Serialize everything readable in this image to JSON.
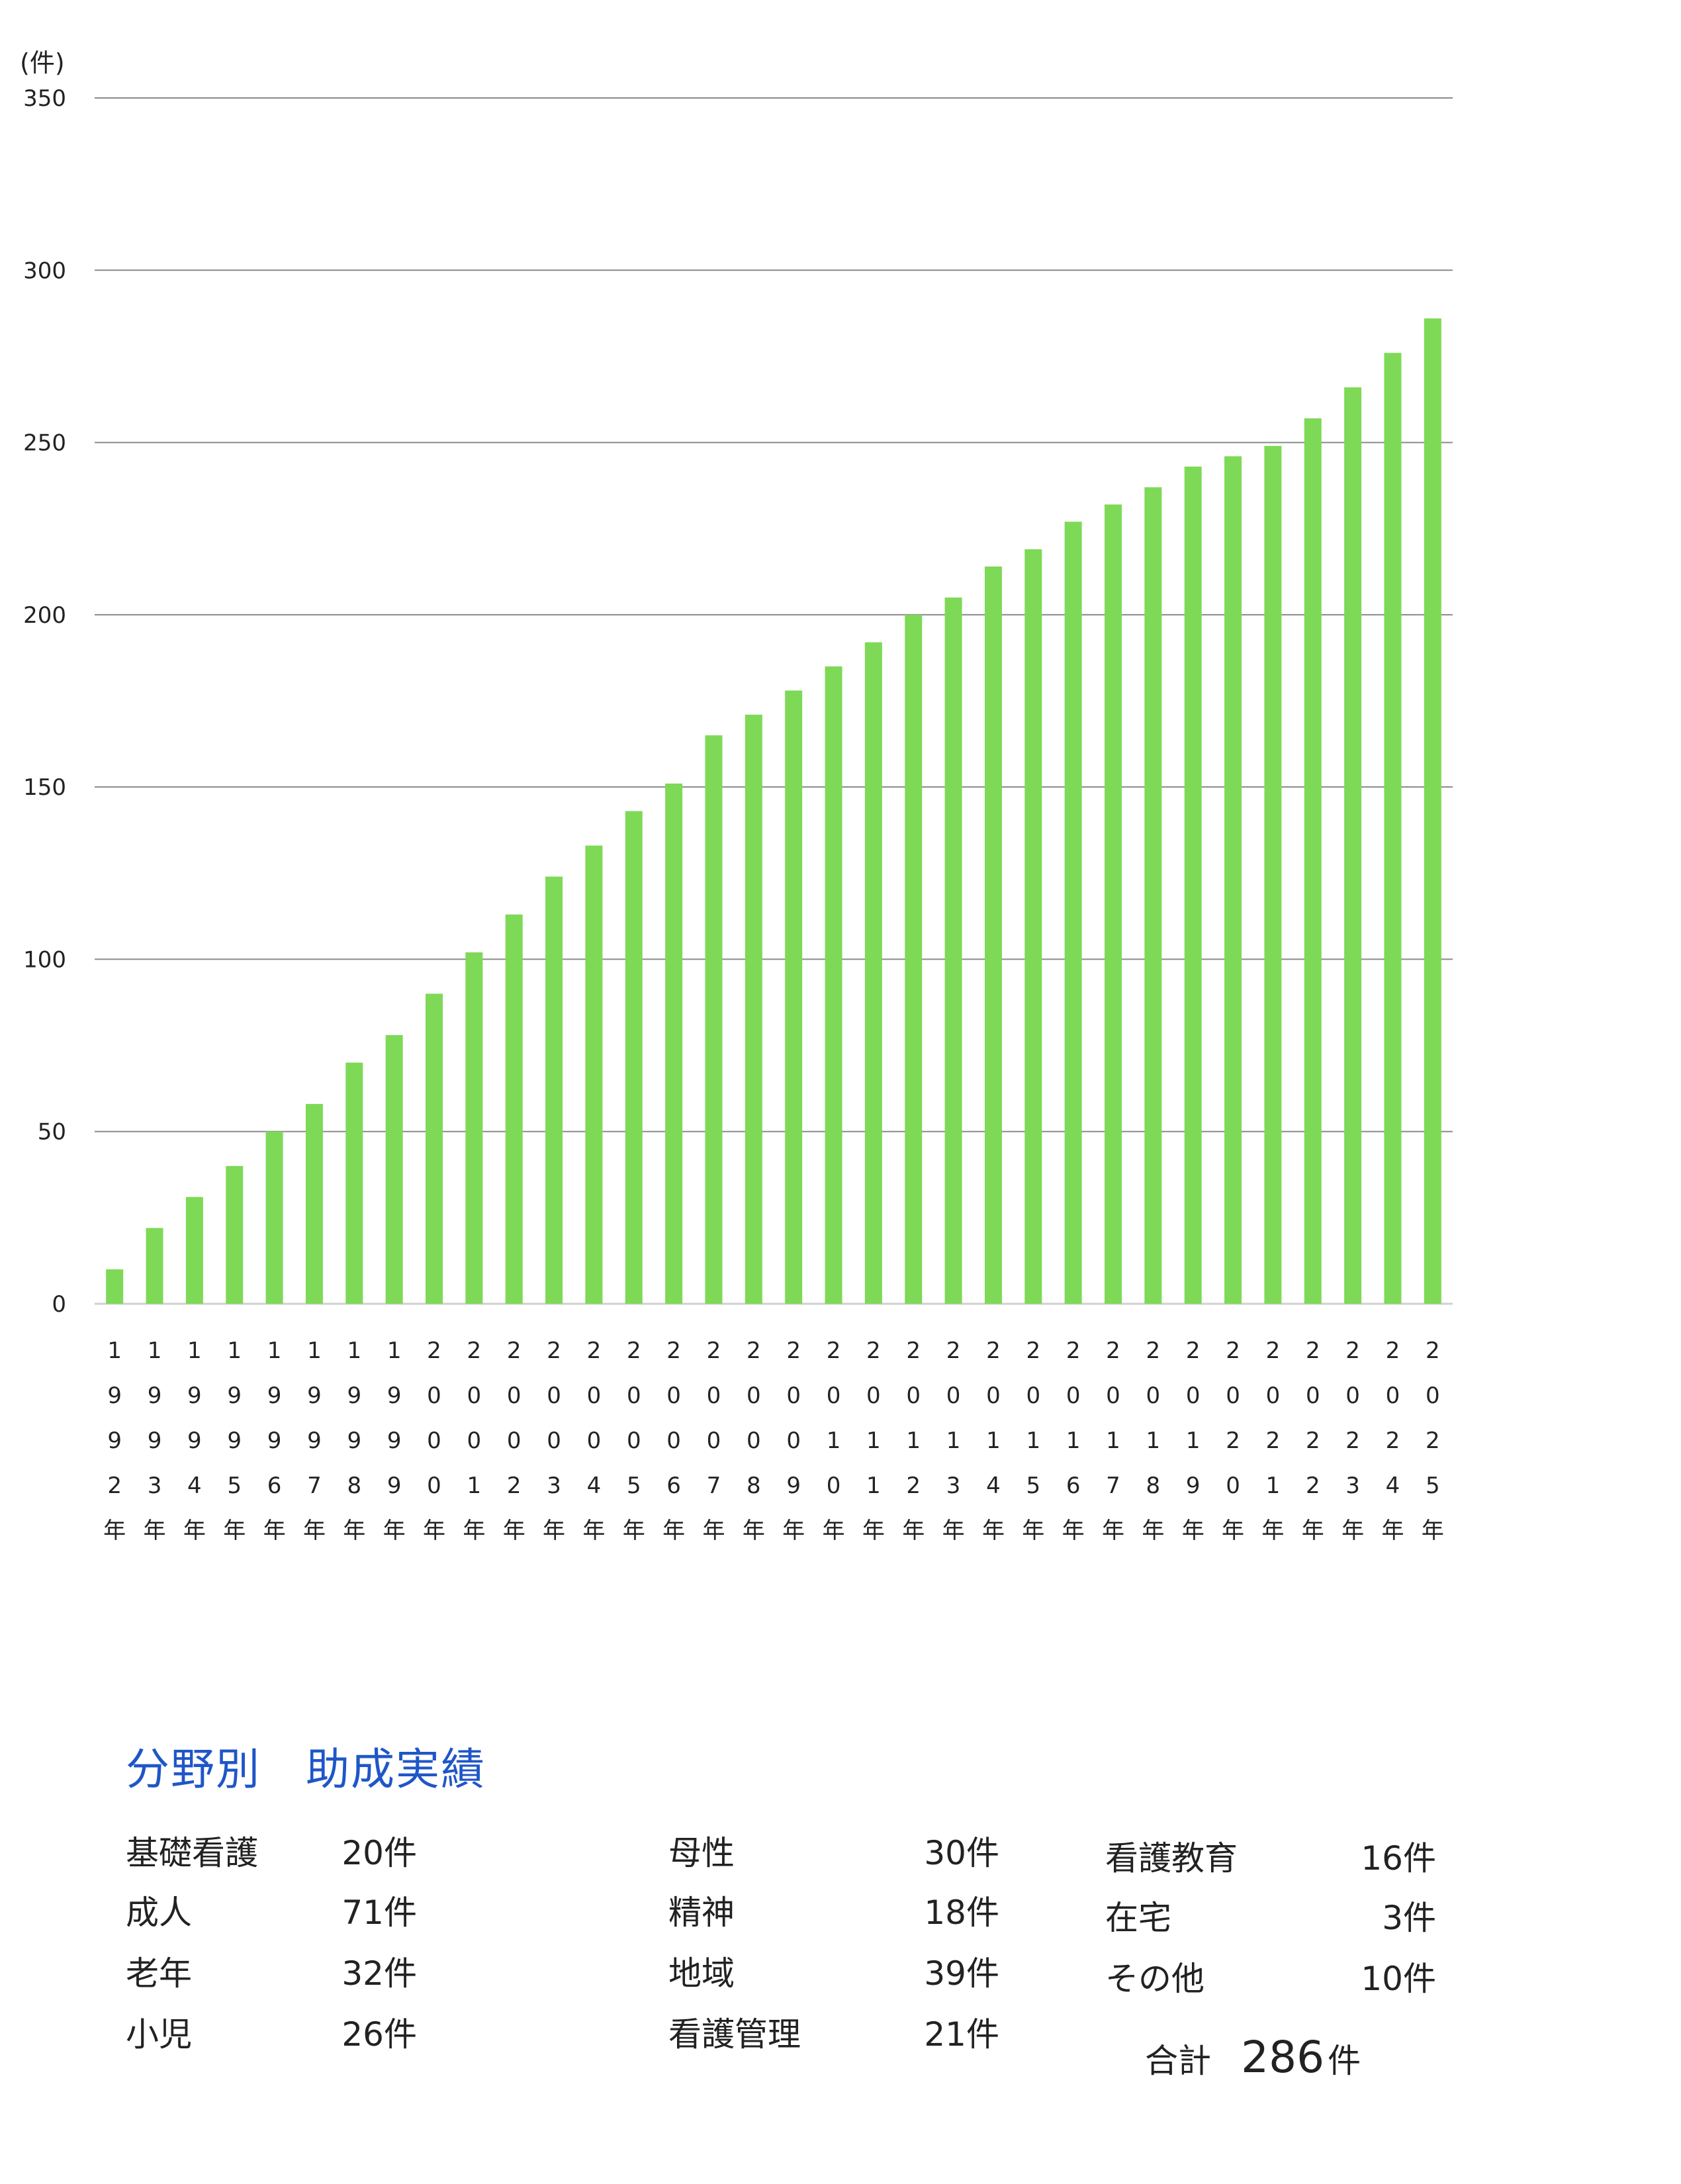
{
  "chart_data": {
    "type": "bar",
    "y_unit_label": "(件)",
    "ylim": [
      0,
      350
    ],
    "yticks": [
      0,
      50,
      100,
      150,
      200,
      250,
      300,
      350
    ],
    "grid": true,
    "bar_color": "#7ed957",
    "categories": [
      "1992年",
      "1993年",
      "1994年",
      "1995年",
      "1996年",
      "1997年",
      "1998年",
      "1999年",
      "2000年",
      "2001年",
      "2002年",
      "2003年",
      "2004年",
      "2005年",
      "2006年",
      "2007年",
      "2008年",
      "2009年",
      "2010年",
      "2011年",
      "2012年",
      "2013年",
      "2014年",
      "2015年",
      "2016年",
      "2017年",
      "2018年",
      "2019年",
      "2020年",
      "2021年",
      "2022年",
      "2023年",
      "2024年",
      "2025年"
    ],
    "values": [
      10,
      22,
      31,
      40,
      50,
      58,
      70,
      78,
      90,
      102,
      113,
      124,
      133,
      143,
      151,
      165,
      171,
      178,
      185,
      192,
      200,
      205,
      214,
      219,
      227,
      232,
      237,
      243,
      246,
      249,
      257,
      266,
      276,
      286
    ]
  },
  "summary": {
    "title": "分野別　助成実績",
    "title_color": "#1f56c8",
    "columns": [
      [
        {
          "label": "基礎看護",
          "count": "20件"
        },
        {
          "label": "成人",
          "count": "71件"
        },
        {
          "label": "老年",
          "count": "32件"
        },
        {
          "label": "小児",
          "count": "26件"
        }
      ],
      [
        {
          "label": "母性",
          "count": "30件"
        },
        {
          "label": "精神",
          "count": "18件"
        },
        {
          "label": "地域",
          "count": "39件"
        },
        {
          "label": "看護管理",
          "count": "21件"
        }
      ],
      [
        {
          "label": "看護教育",
          "count": "16件"
        },
        {
          "label": "在宅",
          "count": "3件"
        },
        {
          "label": "その他",
          "count": "10件"
        }
      ]
    ],
    "total_label": "合計",
    "total_value": "286",
    "total_unit": "件"
  }
}
